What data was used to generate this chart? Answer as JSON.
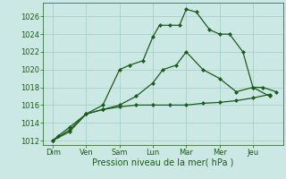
{
  "background_color": "#cce8e4",
  "grid_color": "#aad0cc",
  "line_color": "#1a5c1a",
  "title": "Pression niveau de la mer( hPa )",
  "ylim": [
    1011.5,
    1027.5
  ],
  "yticks": [
    1012,
    1014,
    1016,
    1018,
    1020,
    1022,
    1024,
    1026
  ],
  "x_labels": [
    "Dim",
    "Ven",
    "Sam",
    "Lun",
    "Mar",
    "Mer",
    "Jeu"
  ],
  "x_positions": [
    0,
    1,
    2,
    3,
    4,
    5,
    6
  ],
  "line1_x": [
    0,
    0.15,
    0.5,
    1.0,
    1.5,
    2.0,
    2.5,
    3.0,
    3.5,
    4.0,
    4.5,
    5.0,
    5.5,
    6.0,
    6.5
  ],
  "line1_y": [
    1012,
    1012.5,
    1013.5,
    1015,
    1015.5,
    1015.8,
    1016,
    1016,
    1016,
    1016,
    1016.2,
    1016.3,
    1016.5,
    1016.8,
    1017.2
  ],
  "line2_x": [
    0,
    0.5,
    1.0,
    1.5,
    2.0,
    2.5,
    3.0,
    3.3,
    3.7,
    4.0,
    4.5,
    5.0,
    5.5,
    6.0,
    6.5
  ],
  "line2_y": [
    1012,
    1013,
    1015,
    1015.5,
    1016,
    1017,
    1018.5,
    1020,
    1020.5,
    1022,
    1020,
    1019,
    1017.5,
    1018,
    1017
  ],
  "line3_x": [
    0,
    0.5,
    1.0,
    1.5,
    2.0,
    2.3,
    2.7,
    3.0,
    3.2,
    3.5,
    3.8,
    4.0,
    4.3,
    4.7,
    5.0,
    5.3,
    5.7,
    6.0,
    6.3,
    6.7
  ],
  "line3_y": [
    1012,
    1013.2,
    1015,
    1016,
    1020,
    1020.5,
    1021,
    1023.7,
    1025,
    1025,
    1025,
    1026.8,
    1026.5,
    1024.5,
    1024,
    1024,
    1022,
    1018,
    1018,
    1017.5
  ],
  "title_fontsize": 7,
  "tick_fontsize": 6,
  "marker": "D",
  "markersize": 2,
  "linewidth": 0.9
}
